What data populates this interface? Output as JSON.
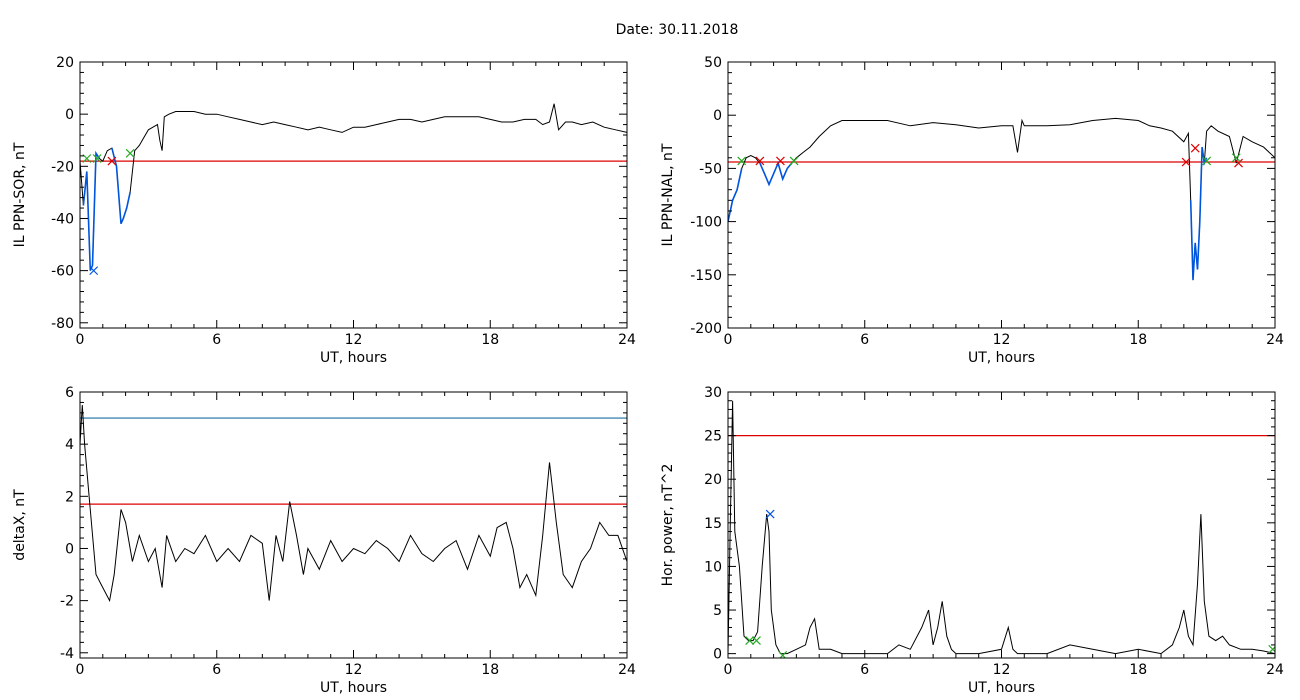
{
  "figure": {
    "date_label": "Date:  30.11.2018"
  },
  "chart_data": [
    {
      "type": "line",
      "title": "",
      "xlabel": "UT, hours",
      "ylabel": "IL PPN-SOR, nT",
      "xlim": [
        0,
        24
      ],
      "ylim": [
        -82,
        20
      ],
      "xticks": [
        0,
        6,
        12,
        18,
        24
      ],
      "yticks": [
        20,
        0,
        -20,
        -40,
        -60,
        -80
      ],
      "grid": false,
      "series": [
        {
          "color": "#000000",
          "x": [
            0,
            0.15,
            0.3,
            0.45,
            0.55,
            0.7,
            0.85,
            1.0,
            1.2,
            1.4,
            1.6,
            1.8,
            1.9,
            2.05,
            2.2,
            2.4,
            2.6,
            2.8,
            3.0,
            3.2,
            3.4,
            3.5,
            3.6,
            3.7,
            3.9,
            4.2,
            4.6,
            5.0,
            5.5,
            6,
            6.5,
            7,
            7.5,
            8,
            8.5,
            9,
            9.5,
            10,
            10.5,
            11,
            11.5,
            12,
            12.5,
            13,
            13.5,
            14,
            14.5,
            15,
            15.5,
            16,
            16.5,
            17,
            17.5,
            18,
            18.5,
            19,
            19.5,
            20,
            20.3,
            20.6,
            20.8,
            21.0,
            21.3,
            21.6,
            22,
            22.5,
            23,
            23.5,
            24
          ],
          "y": [
            -18,
            -35,
            -22,
            -60,
            -58,
            -15,
            -17,
            -18,
            -14,
            -13,
            -20,
            -42,
            -40,
            -36,
            -30,
            -14,
            -12,
            -9,
            -6,
            -5,
            -4,
            -10,
            -14,
            -1,
            0,
            1,
            1,
            1,
            0,
            0,
            -1,
            -2,
            -3,
            -4,
            -3,
            -4,
            -5,
            -6,
            -5,
            -6,
            -7,
            -5,
            -5,
            -4,
            -3,
            -2,
            -2,
            -3,
            -2,
            -1,
            -1,
            -1,
            -1,
            -2,
            -3,
            -3,
            -2,
            -2,
            -4,
            -3,
            4,
            -6,
            -3,
            -3,
            -4,
            -3,
            -5,
            -6,
            -7
          ]
        },
        {
          "color": "#0055dd",
          "x": [
            0.15,
            0.3,
            0.45,
            0.55,
            0.7,
            0.85
          ],
          "y": [
            -35,
            -22,
            -60,
            -58,
            -15,
            -17
          ]
        },
        {
          "color": "#0055dd",
          "x": [
            1.4,
            1.6,
            1.8,
            1.9,
            2.05,
            2.2
          ],
          "y": [
            -13,
            -20,
            -42,
            -40,
            -36,
            -30
          ]
        }
      ],
      "hlines": [
        {
          "y": -18,
          "color": "#dd0000"
        }
      ],
      "markers": [
        {
          "x": 0.3,
          "y": -17,
          "color": "#22aa22"
        },
        {
          "x": 0.75,
          "y": -17,
          "color": "#22aa22"
        },
        {
          "x": 1.4,
          "y": -18,
          "color": "#dd0000"
        },
        {
          "x": 2.2,
          "y": -15,
          "color": "#22aa22"
        },
        {
          "x": 0.6,
          "y": -60,
          "color": "#0055dd"
        }
      ]
    },
    {
      "type": "line",
      "title": "",
      "xlabel": "UT, hours",
      "ylabel": "IL PPN-NAL, nT",
      "xlim": [
        0,
        24
      ],
      "ylim": [
        -200,
        50
      ],
      "xticks": [
        0,
        6,
        12,
        18,
        24
      ],
      "yticks": [
        50,
        0,
        -50,
        -100,
        -150,
        -200
      ],
      "grid": false,
      "series": [
        {
          "color": "#000000",
          "x": [
            0,
            0.2,
            0.4,
            0.6,
            0.8,
            1.0,
            1.2,
            1.4,
            1.6,
            1.8,
            2.0,
            2.2,
            2.4,
            2.6,
            2.8,
            3.0,
            3.3,
            3.6,
            4.0,
            4.5,
            5,
            5.5,
            6,
            7,
            8,
            9,
            10,
            11,
            12,
            12.5,
            12.7,
            12.9,
            13,
            14,
            15,
            16,
            17,
            18,
            18.5,
            19,
            19.5,
            20,
            20.2,
            20.3,
            20.4,
            20.5,
            20.6,
            20.7,
            20.8,
            20.9,
            21,
            21.2,
            21.5,
            22,
            22.3,
            22.6,
            23,
            23.5,
            24
          ],
          "y": [
            -100,
            -80,
            -70,
            -50,
            -40,
            -38,
            -40,
            -45,
            -55,
            -65,
            -55,
            -45,
            -60,
            -50,
            -45,
            -40,
            -35,
            -30,
            -20,
            -10,
            -5,
            -5,
            -5,
            -5,
            -10,
            -7,
            -9,
            -12,
            -10,
            -10,
            -35,
            -5,
            -10,
            -10,
            -9,
            -5,
            -3,
            -5,
            -10,
            -12,
            -15,
            -25,
            -17,
            -80,
            -155,
            -120,
            -145,
            -100,
            -30,
            -45,
            -15,
            -10,
            -15,
            -20,
            -45,
            -20,
            -25,
            -30,
            -40
          ]
        },
        {
          "color": "#0055dd",
          "x": [
            0,
            0.2,
            0.4,
            0.6
          ],
          "y": [
            -100,
            -80,
            -70,
            -50
          ]
        },
        {
          "color": "#0055dd",
          "x": [
            1.4,
            1.6,
            1.8,
            2.0,
            2.2,
            2.4,
            2.6,
            2.8
          ],
          "y": [
            -45,
            -55,
            -65,
            -55,
            -45,
            -60,
            -50,
            -45
          ]
        },
        {
          "color": "#0055dd",
          "x": [
            20.3,
            20.4,
            20.5,
            20.6,
            20.7,
            20.8,
            20.9,
            21.0
          ],
          "y": [
            -80,
            -155,
            -120,
            -145,
            -100,
            -30,
            -45,
            -40
          ]
        }
      ],
      "hlines": [
        {
          "y": -44,
          "color": "#dd0000"
        }
      ],
      "markers": [
        {
          "x": 0.6,
          "y": -43,
          "color": "#22aa22"
        },
        {
          "x": 1.4,
          "y": -43,
          "color": "#dd0000"
        },
        {
          "x": 2.3,
          "y": -43,
          "color": "#dd0000"
        },
        {
          "x": 2.9,
          "y": -43,
          "color": "#22aa22"
        },
        {
          "x": 20.1,
          "y": -44,
          "color": "#dd0000"
        },
        {
          "x": 20.5,
          "y": -31,
          "color": "#dd0000"
        },
        {
          "x": 21.0,
          "y": -43,
          "color": "#22aa22"
        },
        {
          "x": 22.4,
          "y": -45,
          "color": "#dd0000"
        },
        {
          "x": 22.3,
          "y": -40,
          "color": "#22aa22"
        }
      ]
    },
    {
      "type": "line",
      "title": "",
      "xlabel": "UT, hours",
      "ylabel": "deltaX, nT",
      "xlim": [
        0,
        24
      ],
      "ylim": [
        -4.2,
        6
      ],
      "xticks": [
        0,
        6,
        12,
        18,
        24
      ],
      "yticks": [
        6,
        4,
        2,
        0,
        -2,
        -4
      ],
      "grid": false,
      "series": [
        {
          "color": "#000000",
          "x": [
            0,
            0.1,
            0.2,
            0.4,
            0.7,
            1.0,
            1.3,
            1.5,
            1.8,
            2.0,
            2.3,
            2.6,
            3.0,
            3.3,
            3.6,
            3.8,
            4.2,
            4.6,
            5,
            5.5,
            6,
            6.5,
            7,
            7.5,
            8,
            8.3,
            8.6,
            8.9,
            9.2,
            9.5,
            9.8,
            10,
            10.5,
            11,
            11.5,
            12,
            12.5,
            13,
            13.5,
            14,
            14.5,
            15,
            15.5,
            16,
            16.5,
            17,
            17.5,
            18,
            18.3,
            18.7,
            19,
            19.3,
            19.6,
            20,
            20.3,
            20.6,
            20.9,
            21.2,
            21.6,
            22,
            22.4,
            22.8,
            23.2,
            23.6,
            24
          ],
          "y": [
            4,
            5.5,
            4,
            2,
            -1,
            -1.5,
            -2,
            -1,
            1.5,
            1,
            -0.5,
            0.5,
            -0.5,
            0,
            -1.5,
            0.5,
            -0.5,
            0,
            -0.2,
            0.5,
            -0.5,
            0,
            -0.5,
            0.5,
            0.2,
            -2,
            0.5,
            -0.5,
            1.8,
            0.5,
            -1,
            0,
            -0.8,
            0.3,
            -0.5,
            0,
            -0.2,
            0.3,
            0,
            -0.5,
            0.5,
            -0.2,
            -0.5,
            0,
            0.3,
            -0.8,
            0.5,
            -0.3,
            0.8,
            1,
            0,
            -1.5,
            -1,
            -1.8,
            0.5,
            3.3,
            1,
            -1,
            -1.5,
            -0.5,
            0,
            1,
            0.5,
            0.5,
            -0.5
          ]
        }
      ],
      "hlines": [
        {
          "y": 5,
          "color": "#1a6fa0"
        },
        {
          "y": 1.7,
          "color": "#dd0000"
        }
      ],
      "markers": []
    },
    {
      "type": "line",
      "title": "",
      "xlabel": "UT, hours",
      "ylabel": "Hor. power, nT^2",
      "xlim": [
        0,
        24
      ],
      "ylim": [
        -0.5,
        30
      ],
      "xticks": [
        0,
        6,
        12,
        18,
        24
      ],
      "yticks": [
        30,
        25,
        20,
        15,
        10,
        5,
        0
      ],
      "grid": false,
      "series": [
        {
          "color": "#000000",
          "x": [
            0,
            0.1,
            0.2,
            0.3,
            0.5,
            0.7,
            0.9,
            1.1,
            1.3,
            1.5,
            1.7,
            1.8,
            1.9,
            2.1,
            2.3,
            2.6,
            3.0,
            3.4,
            3.6,
            3.8,
            4.0,
            4.5,
            5,
            6,
            7,
            7.5,
            8,
            8.5,
            8.8,
            9.0,
            9.2,
            9.4,
            9.6,
            9.8,
            10,
            11,
            12,
            12.3,
            12.5,
            12.7,
            13,
            14,
            15,
            16,
            17,
            18,
            19,
            19.5,
            19.8,
            20,
            20.2,
            20.4,
            20.6,
            20.75,
            20.9,
            21.1,
            21.4,
            21.7,
            22,
            22.5,
            23,
            23.5,
            24
          ],
          "y": [
            0,
            15,
            29,
            14,
            10,
            2,
            1.5,
            1.5,
            2.5,
            10,
            16,
            14,
            5,
            1,
            0,
            0,
            0.5,
            1,
            3,
            4,
            0.5,
            0.5,
            0,
            0,
            0,
            1,
            0.5,
            3,
            5,
            1,
            3,
            6,
            2,
            0.5,
            0,
            0,
            0.5,
            3,
            0.5,
            0,
            0,
            0,
            1,
            0.5,
            0,
            0.5,
            0,
            1,
            3,
            5,
            2,
            1,
            8,
            16,
            6,
            2,
            1.5,
            2,
            1,
            0.5,
            0.5,
            0.3,
            0
          ]
        }
      ],
      "hlines": [
        {
          "y": 25,
          "color": "#dd0000"
        }
      ],
      "markers": [
        {
          "x": 1.85,
          "y": 16,
          "color": "#0055dd"
        },
        {
          "x": 0.95,
          "y": 1.5,
          "color": "#22aa22"
        },
        {
          "x": 1.25,
          "y": 1.5,
          "color": "#22aa22"
        },
        {
          "x": 2.4,
          "y": -0.2,
          "color": "#22aa22"
        },
        {
          "x": 23.9,
          "y": 0.5,
          "color": "#22aa22"
        }
      ]
    }
  ]
}
